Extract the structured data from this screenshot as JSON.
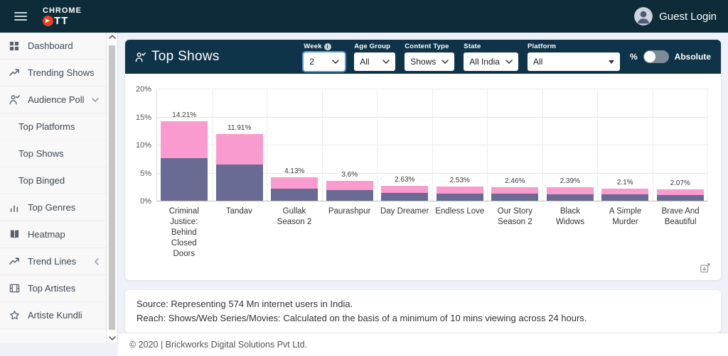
{
  "colors": {
    "navbar_bg": "#0d2b39",
    "header_bg": "#0f3449",
    "pink": "#f99bce",
    "purple": "#696b95",
    "logo_red": "#e8431f"
  },
  "navbar": {
    "logo_line1": "CHROME",
    "logo_line2": "TT",
    "user_label": "Guest Login"
  },
  "sidebar": {
    "items": [
      {
        "label": "Dashboard",
        "icon": "grid"
      },
      {
        "label": "Trending Shows",
        "icon": "trend"
      },
      {
        "label": "Audience Poll",
        "icon": "person-check",
        "chevron": "down"
      },
      {
        "label": "Top Platforms",
        "indent": true
      },
      {
        "label": "Top Shows",
        "indent": true
      },
      {
        "label": "Top Binged",
        "indent": true
      },
      {
        "label": "Top Genres",
        "icon": "bars"
      },
      {
        "label": "Heatmap",
        "icon": "map"
      },
      {
        "label": "Trend Lines",
        "icon": "trend",
        "chevron": "left"
      },
      {
        "label": "Top Artistes",
        "icon": "film"
      },
      {
        "label": "Artiste Kundli",
        "icon": "star"
      }
    ]
  },
  "panel": {
    "title": "Top Shows",
    "filters": [
      {
        "label": "Week",
        "value": "2",
        "info": true,
        "focused": true
      },
      {
        "label": "Age Group",
        "value": "All"
      },
      {
        "label": "Content Type",
        "value": "Shows"
      },
      {
        "label": "State",
        "value": "All India"
      },
      {
        "label": "Platform",
        "value": "All",
        "wide": true
      }
    ],
    "toggle": {
      "left_label": "%",
      "right_label": "Absolute",
      "state": "percent"
    }
  },
  "chart_data": {
    "type": "bar",
    "stacked": true,
    "title": "Top Shows",
    "xlabel": "",
    "ylabel": "",
    "ylim": [
      0,
      20
    ],
    "yticks": [
      "0%",
      "5%",
      "10%",
      "15%",
      "20%"
    ],
    "grid": true,
    "legend": false,
    "categories": [
      "Criminal Justice: Behind Closed Doors",
      "Tandav",
      "Gullak Season 2",
      "Paurashpur",
      "Day Dreamer",
      "Endless Love",
      "Our Story Season 2",
      "Black Widows",
      "A Simple Murder",
      "Brave And Beautiful"
    ],
    "series": [
      {
        "name": "bottom-segment",
        "color": "#696b95",
        "values": [
          7.6,
          6.4,
          2.1,
          1.9,
          1.4,
          1.3,
          1.3,
          1.2,
          1.1,
          1.05
        ]
      },
      {
        "name": "top-segment",
        "color": "#f99bce",
        "values": [
          6.61,
          5.51,
          2.03,
          1.7,
          1.23,
          1.23,
          1.16,
          1.19,
          1.0,
          1.02
        ]
      }
    ],
    "totals": [
      14.21,
      11.91,
      4.13,
      3.6,
      2.63,
      2.53,
      2.46,
      2.39,
      2.1,
      2.07
    ],
    "total_labels": [
      "14.21%",
      "11.91%",
      "4.13%",
      "3.6%",
      "2.63%",
      "2.53%",
      "2.46%",
      "2.39%",
      "2.1%",
      "2.07%"
    ]
  },
  "source_note": {
    "line1": "Source: Representing 574 Mn internet users in India.",
    "line2": "Reach: Shows/Web Series/Movies: Calculated on the basis of a minimum of 10 mins viewing across 24 hours."
  },
  "footer": {
    "copyright": "© 2020 | Brickworks Digital Solutions Pvt Ltd."
  }
}
